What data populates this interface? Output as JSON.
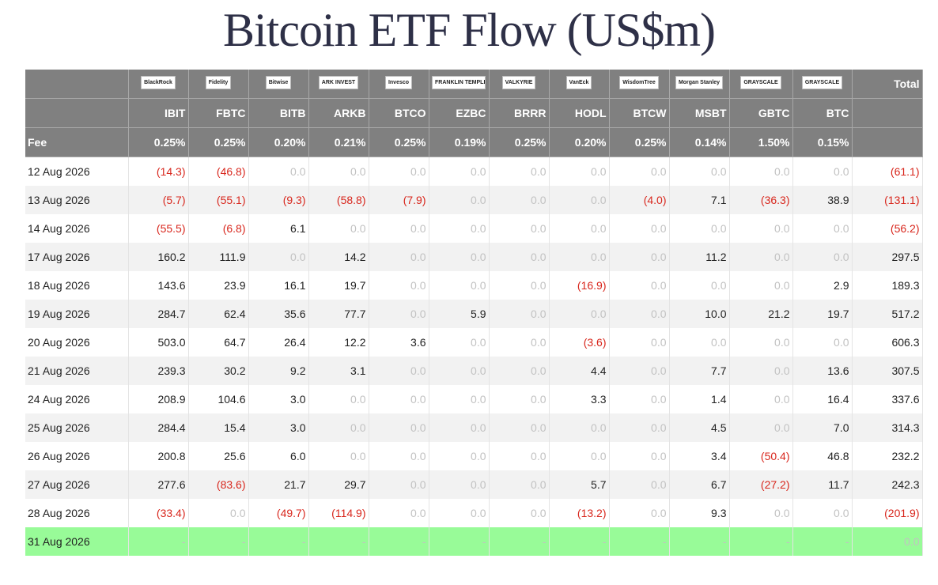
{
  "title": "Bitcoin ETF Flow (US$m)",
  "table": {
    "logos": [
      "BlackRock",
      "Fidelity",
      "Bitwise",
      "ARK INVEST",
      "Invesco",
      "FRANKLIN TEMPLETON",
      "VALKYRIE",
      "VanEck",
      "WisdomTree",
      "Morgan Stanley",
      "GRAYSCALE",
      "GRAYSCALE"
    ],
    "total_header": "Total",
    "tickers": [
      "IBIT",
      "FBTC",
      "BITB",
      "ARKB",
      "BTCO",
      "EZBC",
      "BRRR",
      "HODL",
      "BTCW",
      "MSBT",
      "GBTC",
      "BTC"
    ],
    "fee_label": "Fee",
    "fees": [
      "0.25%",
      "0.25%",
      "0.20%",
      "0.21%",
      "0.25%",
      "0.19%",
      "0.25%",
      "0.20%",
      "0.25%",
      "0.14%",
      "1.50%",
      "0.15%"
    ],
    "rows": [
      {
        "date": "12 Aug 2026",
        "cells": [
          "(14.3)",
          "(46.8)",
          "0.0",
          "0.0",
          "0.0",
          "0.0",
          "0.0",
          "0.0",
          "0.0",
          "0.0",
          "0.0",
          "0.0",
          "(61.1)"
        ]
      },
      {
        "date": "13 Aug 2026",
        "cells": [
          "(5.7)",
          "(55.1)",
          "(9.3)",
          "(58.8)",
          "(7.9)",
          "0.0",
          "0.0",
          "0.0",
          "(4.0)",
          "7.1",
          "(36.3)",
          "38.9",
          "(131.1)"
        ]
      },
      {
        "date": "14 Aug 2026",
        "cells": [
          "(55.5)",
          "(6.8)",
          "6.1",
          "0.0",
          "0.0",
          "0.0",
          "0.0",
          "0.0",
          "0.0",
          "0.0",
          "0.0",
          "0.0",
          "(56.2)"
        ]
      },
      {
        "date": "17 Aug 2026",
        "cells": [
          "160.2",
          "111.9",
          "0.0",
          "14.2",
          "0.0",
          "0.0",
          "0.0",
          "0.0",
          "0.0",
          "11.2",
          "0.0",
          "0.0",
          "297.5"
        ]
      },
      {
        "date": "18 Aug 2026",
        "cells": [
          "143.6",
          "23.9",
          "16.1",
          "19.7",
          "0.0",
          "0.0",
          "0.0",
          "(16.9)",
          "0.0",
          "0.0",
          "0.0",
          "2.9",
          "189.3"
        ]
      },
      {
        "date": "19 Aug 2026",
        "cells": [
          "284.7",
          "62.4",
          "35.6",
          "77.7",
          "0.0",
          "5.9",
          "0.0",
          "0.0",
          "0.0",
          "10.0",
          "21.2",
          "19.7",
          "517.2"
        ]
      },
      {
        "date": "20 Aug 2026",
        "cells": [
          "503.0",
          "64.7",
          "26.4",
          "12.2",
          "3.6",
          "0.0",
          "0.0",
          "(3.6)",
          "0.0",
          "0.0",
          "0.0",
          "0.0",
          "606.3"
        ]
      },
      {
        "date": "21 Aug 2026",
        "cells": [
          "239.3",
          "30.2",
          "9.2",
          "3.1",
          "0.0",
          "0.0",
          "0.0",
          "4.4",
          "0.0",
          "7.7",
          "0.0",
          "13.6",
          "307.5"
        ]
      },
      {
        "date": "24 Aug 2026",
        "cells": [
          "208.9",
          "104.6",
          "3.0",
          "0.0",
          "0.0",
          "0.0",
          "0.0",
          "3.3",
          "0.0",
          "1.4",
          "0.0",
          "16.4",
          "337.6"
        ]
      },
      {
        "date": "25 Aug 2026",
        "cells": [
          "284.4",
          "15.4",
          "3.0",
          "0.0",
          "0.0",
          "0.0",
          "0.0",
          "0.0",
          "0.0",
          "4.5",
          "0.0",
          "7.0",
          "314.3"
        ]
      },
      {
        "date": "26 Aug 2026",
        "cells": [
          "200.8",
          "25.6",
          "6.0",
          "0.0",
          "0.0",
          "0.0",
          "0.0",
          "0.0",
          "0.0",
          "3.4",
          "(50.4)",
          "46.8",
          "232.2"
        ]
      },
      {
        "date": "27 Aug 2026",
        "cells": [
          "277.6",
          "(83.6)",
          "21.7",
          "29.7",
          "0.0",
          "0.0",
          "0.0",
          "5.7",
          "0.0",
          "6.7",
          "(27.2)",
          "11.7",
          "242.3"
        ]
      },
      {
        "date": "28 Aug 2026",
        "cells": [
          "(33.4)",
          "0.0",
          "(49.7)",
          "(114.9)",
          "0.0",
          "0.0",
          "0.0",
          "(13.2)",
          "0.0",
          "9.3",
          "0.0",
          "0.0",
          "(201.9)"
        ]
      },
      {
        "date": "31 Aug 2026",
        "cells": [
          "-",
          "-",
          "-",
          "-",
          "-",
          "-",
          "-",
          "-",
          "-",
          "-",
          "-",
          "-",
          "0.0"
        ]
      }
    ]
  }
}
